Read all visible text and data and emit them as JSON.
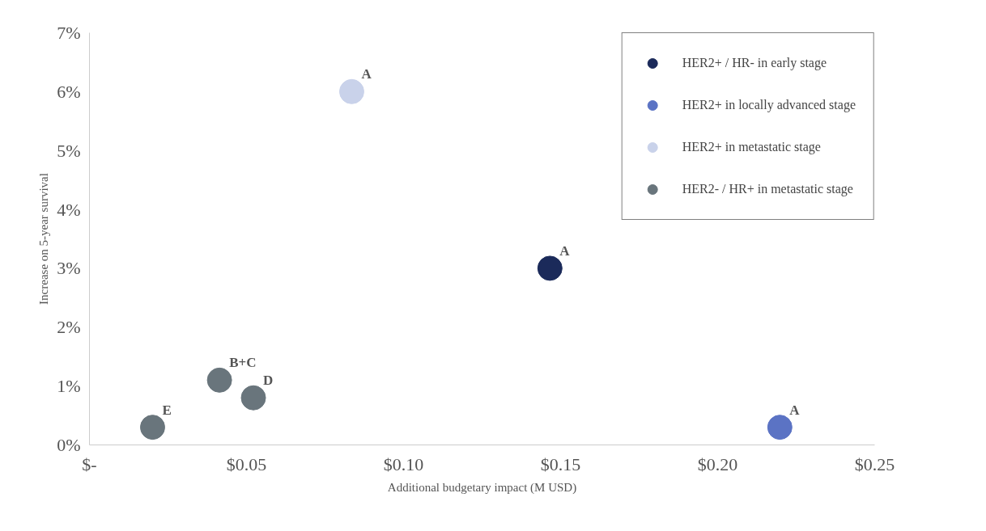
{
  "chart_data": {
    "type": "scatter",
    "xlabel": "Additional budgetary impact (M USD)",
    "ylabel": "Increase on 5-year survival",
    "series": [
      {
        "name": "HER2+ / HR- in early stage",
        "color": "#1b2a5a",
        "x": [
          0.1466
        ],
        "values": [
          3.0
        ]
      },
      {
        "name": "HER2+ in locally advanced stage",
        "color": "#5b73c4",
        "x": [
          0.2198
        ],
        "values": [
          0.3
        ]
      },
      {
        "name": "HER2+ in metastatic stage",
        "color": "#c9d2ea",
        "x": [
          0.0835
        ],
        "values": [
          6.0
        ]
      },
      {
        "name": "HER2- / HR+ in metastatic stage",
        "color": "#69757c",
        "x": [
          0.0201,
          0.0414,
          0.0522
        ],
        "values": [
          0.3,
          1.1,
          0.8
        ]
      }
    ],
    "annotations": [
      {
        "text": "A",
        "x": 0.1466,
        "y": 3.0
      },
      {
        "text": "A",
        "x": 0.2198,
        "y": 0.3
      },
      {
        "text": "A",
        "x": 0.0835,
        "y": 6.0
      },
      {
        "text": "E",
        "x": 0.0201,
        "y": 0.3
      },
      {
        "text": "B+C",
        "x": 0.0414,
        "y": 1.1
      },
      {
        "text": "D",
        "x": 0.0522,
        "y": 0.8
      }
    ],
    "xlim": [
      0,
      0.25
    ],
    "ylim": [
      0,
      7
    ],
    "xticks": [
      {
        "value": 0,
        "label": "$-"
      },
      {
        "value": 0.05,
        "label": "$0.05"
      },
      {
        "value": 0.1,
        "label": "$0.10"
      },
      {
        "value": 0.15,
        "label": "$0.15"
      },
      {
        "value": 0.2,
        "label": "$0.20"
      },
      {
        "value": 0.25,
        "label": "$0.25"
      }
    ],
    "yticks": [
      {
        "value": 0,
        "label": "0%"
      },
      {
        "value": 1,
        "label": "1%"
      },
      {
        "value": 2,
        "label": "2%"
      },
      {
        "value": 3,
        "label": "3%"
      },
      {
        "value": 4,
        "label": "4%"
      },
      {
        "value": 5,
        "label": "5%"
      },
      {
        "value": 6,
        "label": "6%"
      },
      {
        "value": 7,
        "label": "7%"
      }
    ],
    "grid": false,
    "legend": "top right",
    "marker": "circle"
  }
}
